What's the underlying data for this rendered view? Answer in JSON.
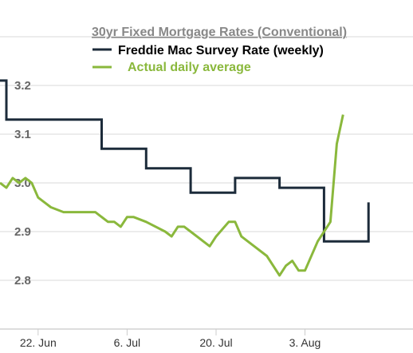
{
  "chart_data": {
    "type": "line",
    "title": "30yr Fixed Mortgage Rates (Conventional)",
    "xlabel": "",
    "ylabel": "",
    "legend_position": "top-center",
    "grid": true,
    "x_range": [
      "2020-06-16",
      "2020-08-20"
    ],
    "ylim": [
      2.7,
      3.3
    ],
    "y_ticks": [
      2.8,
      2.9,
      3.0,
      3.1,
      3.2
    ],
    "x_ticks": [
      {
        "date": "2020-06-22",
        "label": "22. Jun"
      },
      {
        "date": "2020-07-06",
        "label": "6. Jul"
      },
      {
        "date": "2020-07-20",
        "label": "20. Jul"
      },
      {
        "date": "2020-08-03",
        "label": "3. Aug"
      }
    ],
    "series": [
      {
        "name": "Freddie Mac Survey Rate (weekly)",
        "color": "#1c2b3a",
        "step": true,
        "points": [
          [
            "2020-06-16",
            3.21
          ],
          [
            "2020-06-17",
            3.21
          ],
          [
            "2020-06-17",
            3.13
          ],
          [
            "2020-07-02",
            3.13
          ],
          [
            "2020-07-02",
            3.07
          ],
          [
            "2020-07-09",
            3.07
          ],
          [
            "2020-07-09",
            3.03
          ],
          [
            "2020-07-16",
            3.03
          ],
          [
            "2020-07-16",
            2.98
          ],
          [
            "2020-07-23",
            2.98
          ],
          [
            "2020-07-23",
            3.01
          ],
          [
            "2020-07-30",
            3.01
          ],
          [
            "2020-07-30",
            2.99
          ],
          [
            "2020-08-06",
            2.99
          ],
          [
            "2020-08-06",
            2.88
          ],
          [
            "2020-08-13",
            2.88
          ],
          [
            "2020-08-13",
            2.96
          ]
        ]
      },
      {
        "name": "Actual daily average",
        "color": "#8ab83c",
        "step": false,
        "points": [
          [
            "2020-06-16",
            3.0
          ],
          [
            "2020-06-17",
            2.99
          ],
          [
            "2020-06-18",
            3.01
          ],
          [
            "2020-06-19",
            3.0
          ],
          [
            "2020-06-20",
            3.01
          ],
          [
            "2020-06-21",
            3.0
          ],
          [
            "2020-06-22",
            2.97
          ],
          [
            "2020-06-24",
            2.95
          ],
          [
            "2020-06-26",
            2.94
          ],
          [
            "2020-06-28",
            2.94
          ],
          [
            "2020-07-01",
            2.94
          ],
          [
            "2020-07-03",
            2.92
          ],
          [
            "2020-07-04",
            2.92
          ],
          [
            "2020-07-05",
            2.91
          ],
          [
            "2020-07-06",
            2.93
          ],
          [
            "2020-07-07",
            2.93
          ],
          [
            "2020-07-09",
            2.92
          ],
          [
            "2020-07-12",
            2.9
          ],
          [
            "2020-07-13",
            2.89
          ],
          [
            "2020-07-14",
            2.91
          ],
          [
            "2020-07-15",
            2.91
          ],
          [
            "2020-07-16",
            2.9
          ],
          [
            "2020-07-18",
            2.88
          ],
          [
            "2020-07-19",
            2.87
          ],
          [
            "2020-07-20",
            2.89
          ],
          [
            "2020-07-22",
            2.92
          ],
          [
            "2020-07-23",
            2.92
          ],
          [
            "2020-07-24",
            2.89
          ],
          [
            "2020-07-26",
            2.87
          ],
          [
            "2020-07-28",
            2.85
          ],
          [
            "2020-07-30",
            2.81
          ],
          [
            "2020-07-31",
            2.83
          ],
          [
            "2020-08-01",
            2.84
          ],
          [
            "2020-08-02",
            2.82
          ],
          [
            "2020-08-03",
            2.82
          ],
          [
            "2020-08-05",
            2.88
          ],
          [
            "2020-08-07",
            2.92
          ],
          [
            "2020-08-08",
            3.08
          ],
          [
            "2020-08-09",
            3.14
          ]
        ]
      }
    ]
  }
}
